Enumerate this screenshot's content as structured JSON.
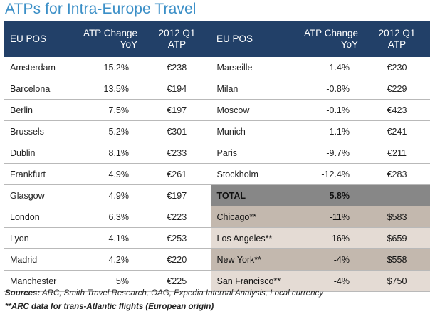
{
  "title": "ATPs for Intra-Europe Travel",
  "headers": {
    "pos": "EU POS",
    "change_line1": "ATP Change",
    "change_line2": "YoY",
    "atp_line1": "2012 Q1",
    "atp_line2": "ATP"
  },
  "left_rows": [
    {
      "pos": "Amsterdam",
      "change": "15.2%",
      "atp": "€238"
    },
    {
      "pos": "Barcelona",
      "change": "13.5%",
      "atp": "€194"
    },
    {
      "pos": "Berlin",
      "change": "7.5%",
      "atp": "€197"
    },
    {
      "pos": "Brussels",
      "change": "5.2%",
      "atp": "€301"
    },
    {
      "pos": "Dublin",
      "change": "8.1%",
      "atp": "€233"
    },
    {
      "pos": "Frankfurt",
      "change": "4.9%",
      "atp": "€261"
    },
    {
      "pos": "Glasgow",
      "change": "4.9%",
      "atp": "€197"
    },
    {
      "pos": "London",
      "change": "6.3%",
      "atp": "€223"
    },
    {
      "pos": "Lyon",
      "change": "4.1%",
      "atp": "€253"
    },
    {
      "pos": "Madrid",
      "change": "4.2%",
      "atp": "€220"
    },
    {
      "pos": "Manchester",
      "change": "5%",
      "atp": "€225"
    }
  ],
  "right_rows": [
    {
      "pos": "Marseille",
      "change": "-1.4%",
      "atp": "€230"
    },
    {
      "pos": "Milan",
      "change": "-0.8%",
      "atp": "€229"
    },
    {
      "pos": "Moscow",
      "change": "-0.1%",
      "atp": "€423"
    },
    {
      "pos": "Munich",
      "change": "-1.1%",
      "atp": "€241"
    },
    {
      "pos": "Paris",
      "change": "-9.7%",
      "atp": "€211"
    },
    {
      "pos": "Stockholm",
      "change": "-12.4%",
      "atp": "€283"
    },
    {
      "pos": "TOTAL",
      "change": "5.8%",
      "atp": ""
    },
    {
      "pos": "Chicago**",
      "change": "-11%",
      "atp": "$583"
    },
    {
      "pos": "Los Angeles**",
      "change": "-16%",
      "atp": "$659"
    },
    {
      "pos": "New York**",
      "change": "-4%",
      "atp": "$558"
    },
    {
      "pos": "San Francisco**",
      "change": "-4%",
      "atp": "$750"
    }
  ],
  "footnotes": {
    "sources_label": "Sources:",
    "sources_text": " ARC, Smith Travel Research, OAG, Expedia Internal Analysis, Local currency",
    "arc_note": "**ARC data for trans-Atlantic flights (European origin)"
  },
  "colors": {
    "title": "#3b8fc7",
    "header_bg": "#224068",
    "total_bg": "#878787",
    "us_light_bg": "#e4dbd4",
    "us_dark_bg": "#c3b8ae"
  }
}
